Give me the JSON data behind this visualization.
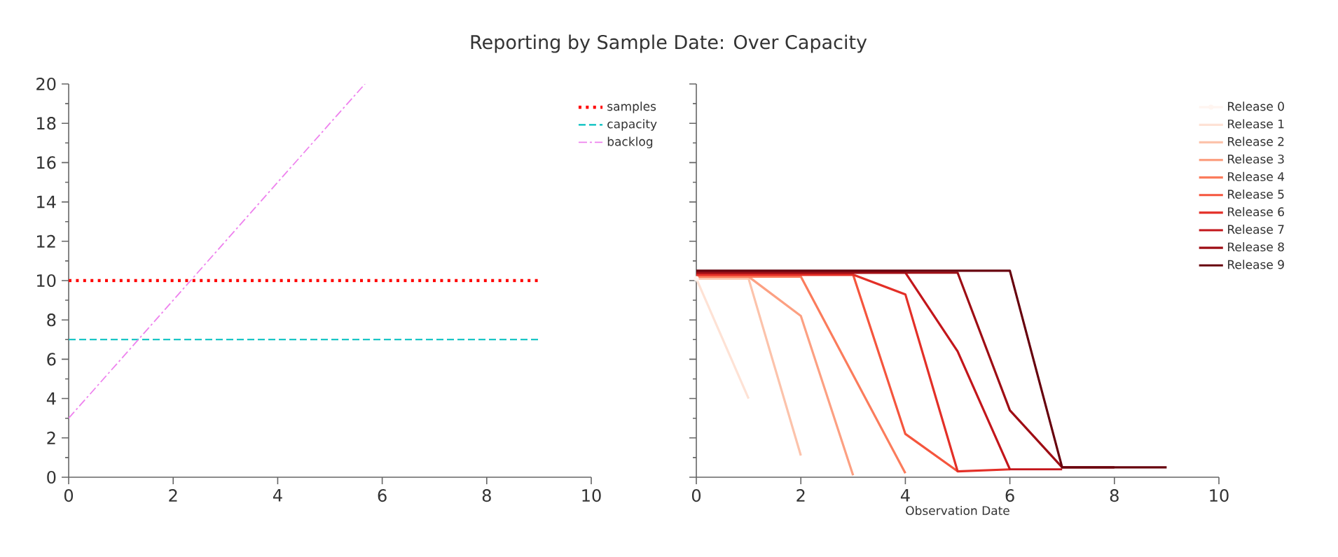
{
  "chart_data": [
    {
      "type": "line",
      "title": "Reporting by Sample Date: Over Capacity",
      "xlim": [
        0,
        10
      ],
      "ylim": [
        0,
        20
      ],
      "xticks": [
        0,
        2,
        4,
        6,
        8,
        10
      ],
      "yticks": [
        0,
        2,
        4,
        6,
        8,
        10,
        12,
        14,
        16,
        18,
        20
      ],
      "legend": "top right",
      "series": [
        {
          "name": "samples",
          "color": "#ff0000",
          "line_style": "dotted",
          "x": [
            0,
            1,
            2,
            3,
            4,
            5,
            6,
            7,
            8,
            9
          ],
          "values": [
            10,
            10,
            10,
            10,
            10,
            10,
            10,
            10,
            10,
            10
          ]
        },
        {
          "name": "capacity",
          "color": "#00bfbf",
          "line_style": "dashed",
          "x": [
            0,
            1,
            2,
            3,
            4,
            5,
            6,
            7,
            8,
            9
          ],
          "values": [
            7,
            7,
            7,
            7,
            7,
            7,
            7,
            7,
            7,
            7
          ]
        },
        {
          "name": "backlog",
          "color": "#ee82ee",
          "line_style": "dashdot",
          "x": [
            0,
            1,
            2,
            3,
            4,
            5,
            5.67
          ],
          "values": [
            3,
            6,
            9,
            12,
            15,
            18,
            20
          ]
        }
      ]
    },
    {
      "type": "line",
      "xlabel": "Observation Date",
      "xlim": [
        0,
        10
      ],
      "ylim": [
        0,
        20
      ],
      "xticks": [
        0,
        2,
        4,
        6,
        8,
        10
      ],
      "yticks": [
        0,
        2,
        4,
        6,
        8,
        10,
        12,
        14,
        16,
        18,
        20
      ],
      "tick_labels": "x",
      "legend": "top right",
      "line_style": "solid",
      "series": [
        {
          "name": "Release 0",
          "color": "#fff5f0",
          "marker": "circle",
          "x": [
            0
          ],
          "values": [
            10.1
          ]
        },
        {
          "name": "Release 1",
          "color": "#fee2d5",
          "x": [
            0,
            1
          ],
          "values": [
            10.1,
            4.0
          ]
        },
        {
          "name": "Release 2",
          "color": "#fcc3ab",
          "x": [
            0,
            1,
            2
          ],
          "values": [
            10.1,
            10.1,
            1.1
          ]
        },
        {
          "name": "Release 3",
          "color": "#fca082",
          "x": [
            0,
            1,
            2,
            3
          ],
          "values": [
            10.2,
            10.2,
            8.2,
            0.1
          ]
        },
        {
          "name": "Release 4",
          "color": "#fb7c5c",
          "x": [
            0,
            1,
            2,
            3,
            4
          ],
          "values": [
            10.2,
            10.2,
            10.2,
            5.2,
            0.2
          ]
        },
        {
          "name": "Release 5",
          "color": "#f5553d",
          "x": [
            0,
            1,
            2,
            3,
            4,
            5
          ],
          "values": [
            10.3,
            10.3,
            10.3,
            10.3,
            2.2,
            0.3
          ]
        },
        {
          "name": "Release 6",
          "color": "#e32f27",
          "x": [
            0,
            1,
            2,
            3,
            4,
            5,
            6
          ],
          "values": [
            10.3,
            10.3,
            10.3,
            10.3,
            9.3,
            0.3,
            0.4
          ]
        },
        {
          "name": "Release 7",
          "color": "#c3161b",
          "x": [
            0,
            1,
            2,
            3,
            4,
            5,
            6,
            7
          ],
          "values": [
            10.4,
            10.4,
            10.4,
            10.4,
            10.4,
            6.4,
            0.4,
            0.4
          ]
        },
        {
          "name": "Release 8",
          "color": "#9e0d14",
          "x": [
            0,
            1,
            2,
            3,
            4,
            5,
            6,
            7,
            8
          ],
          "values": [
            10.4,
            10.4,
            10.4,
            10.4,
            10.4,
            10.4,
            3.4,
            0.5,
            0.5
          ]
        },
        {
          "name": "Release 9",
          "color": "#67000d",
          "x": [
            0,
            1,
            2,
            3,
            4,
            5,
            6,
            7,
            8,
            9
          ],
          "values": [
            10.5,
            10.5,
            10.5,
            10.5,
            10.5,
            10.5,
            10.5,
            0.5,
            0.5,
            0.5
          ]
        }
      ]
    }
  ]
}
